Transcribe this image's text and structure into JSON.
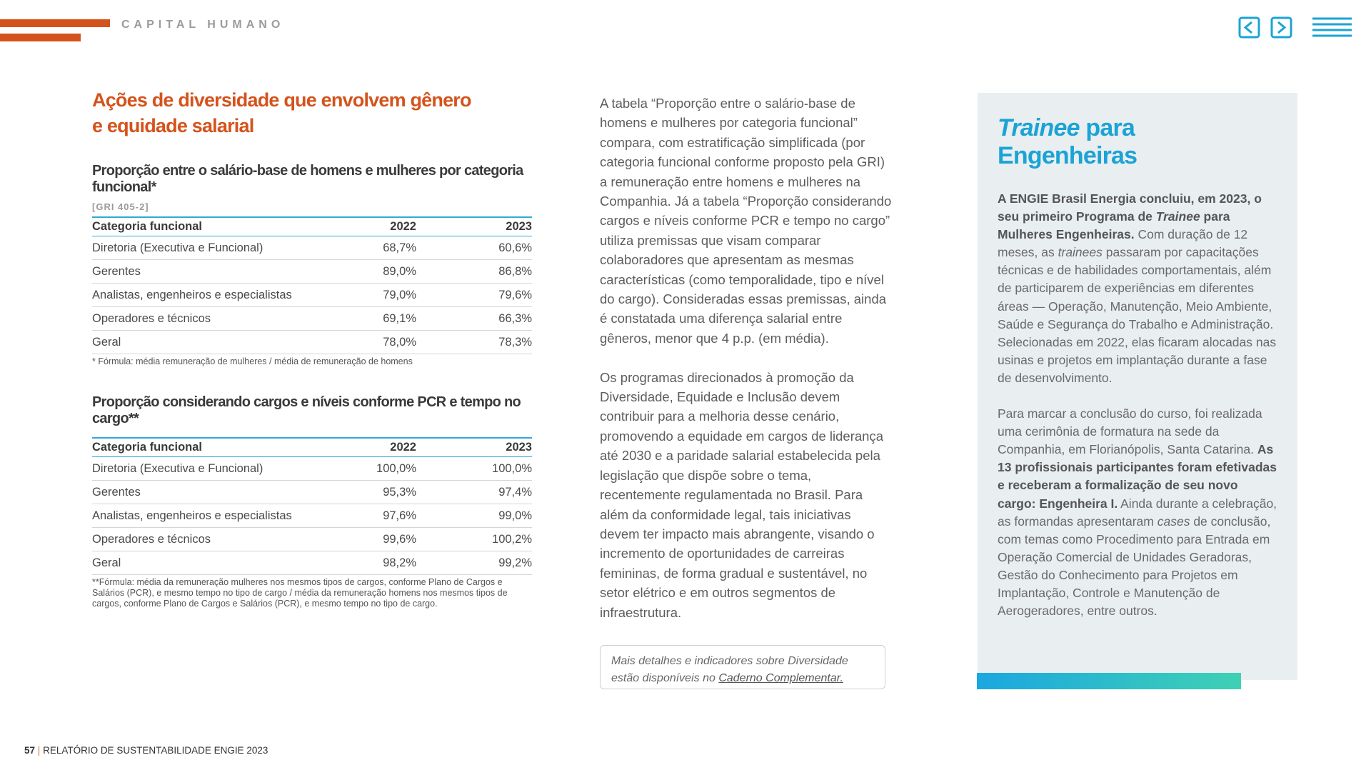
{
  "header": {
    "section": "CAPITAL HUMANO"
  },
  "left": {
    "title_lines": [
      "Ações de diversidade que envolvem gênero",
      "e equidade salarial"
    ],
    "tables": [
      {
        "title": "Proporção entre o salário-base de homens e mulheres por categoria funcional*",
        "ref": "[GRI 405-2]",
        "columns": [
          "Categoria funcional",
          "2022",
          "2023"
        ],
        "rows": [
          [
            "Diretoria (Executiva e Funcional)",
            "68,7%",
            "60,6%"
          ],
          [
            "Gerentes",
            "89,0%",
            "86,8%"
          ],
          [
            "Analistas, engenheiros e especialistas",
            "79,0%",
            "79,6%"
          ],
          [
            "Operadores e técnicos",
            "69,1%",
            "66,3%"
          ],
          [
            "Geral",
            "78,0%",
            "78,3%"
          ]
        ],
        "note": "* Fórmula: média remuneração de mulheres / média de remuneração de homens"
      },
      {
        "title": "Proporção considerando cargos e níveis conforme PCR e tempo no cargo**",
        "columns": [
          "Categoria funcional",
          "2022",
          "2023"
        ],
        "rows": [
          [
            "Diretoria (Executiva e Funcional)",
            "100,0%",
            "100,0%"
          ],
          [
            "Gerentes",
            "95,3%",
            "97,4%"
          ],
          [
            "Analistas, engenheiros e especialistas",
            "97,6%",
            "99,0%"
          ],
          [
            "Operadores e técnicos",
            "99,6%",
            "100,2%"
          ],
          [
            "Geral",
            "98,2%",
            "99,2%"
          ]
        ],
        "note": "**Fórmula: média da remuneração mulheres nos mesmos tipos de cargos, conforme Plano de Cargos e Salários (PCR), e mesmo tempo no tipo de cargo / média da remuneração homens nos mesmos tipos de cargos, conforme Plano de Cargos e Salários (PCR), e mesmo tempo no tipo de cargo."
      }
    ]
  },
  "middle": {
    "paragraphs": [
      "A tabela “Proporção entre o salário-base de homens e mulheres por categoria funcional” compara, com estratificação simplificada (por categoria funcional conforme proposto pela GRI) a remuneração entre homens e mulheres na Companhia. Já a tabela “Proporção considerando cargos e níveis conforme PCR e tempo no cargo” utiliza premissas que visam comparar colaboradores que apresentam as mesmas características (como temporalidade, tipo e nível do cargo). Consideradas essas premissas, ainda é constatada uma diferença salarial entre gêneros, menor que 4 p.p. (em média).",
      "Os programas direcionados à promoção da Diversidade, Equidade e Inclusão devem contribuir para a melhoria desse cenário, promovendo a equidade em cargos de liderança até 2030 e a paridade salarial estabelecida pela legislação que dispõe sobre o tema, recentemente regulamentada no Brasil. Para além da conformidade legal, tais iniciativas devem ter impacto mais abrangente, visando o incremento de oportunidades de carreiras femininas, de forma gradual e sustentável, no setor elétrico e em outros segmentos de infraestrutura."
    ],
    "note": [
      {
        "text": "Mais detalhes e indicadores sobre Diversidade estão disponíveis no ",
        "style": "italic"
      },
      {
        "text": "Caderno Complementar.",
        "style": "link"
      }
    ]
  },
  "box": {
    "title": [
      {
        "text": "Trainee",
        "style": "italic"
      },
      {
        "text": " para Engenheiras",
        "style": "normal"
      }
    ],
    "paragraphs": [
      [
        {
          "text": "A ENGIE Brasil Energia concluiu, em 2023, o seu primeiro Programa de ",
          "style": "bold"
        },
        {
          "text": "Trainee",
          "style": "bold-italic"
        },
        {
          "text": " para Mulheres Engenheiras.",
          "style": "bold"
        },
        {
          "text": " Com duração de 12 meses, as ",
          "style": "normal"
        },
        {
          "text": "trainees",
          "style": "italic"
        },
        {
          "text": " passaram por capacitações técnicas e de habilidades comportamentais, além de participarem de experiências em diferentes áreas — Operação, Manutenção, Meio Ambiente, Saúde e Segurança do Trabalho e Administração. Selecionadas em 2022, elas ficaram alocadas nas usinas e projetos em implantação durante a fase de desenvolvimento.",
          "style": "normal"
        }
      ],
      [
        {
          "text": "Para marcar a conclusão do curso, foi realizada uma cerimônia de formatura na sede da Companhia, em Florianópolis, Santa Catarina. ",
          "style": "normal"
        },
        {
          "text": "As 13 profissionais participantes foram efetivadas e receberam a formalização de seu novo cargo: Engenheira I.",
          "style": "bold"
        },
        {
          "text": " Ainda durante a celebração, as formandas apresentaram ",
          "style": "normal"
        },
        {
          "text": "cases",
          "style": "italic"
        },
        {
          "text": " de conclusão, com temas como Procedimento para Entrada em Operação Comercial de Unidades Geradoras, Gestão do Conhecimento para Projetos em Implantação, Controle e Manutenção de Aerogeradores, entre outros.",
          "style": "normal"
        }
      ]
    ]
  },
  "footer": {
    "page": "57",
    "text": "RELATÓRIO DE SUSTENTABILIDADE ENGIE 2023"
  }
}
